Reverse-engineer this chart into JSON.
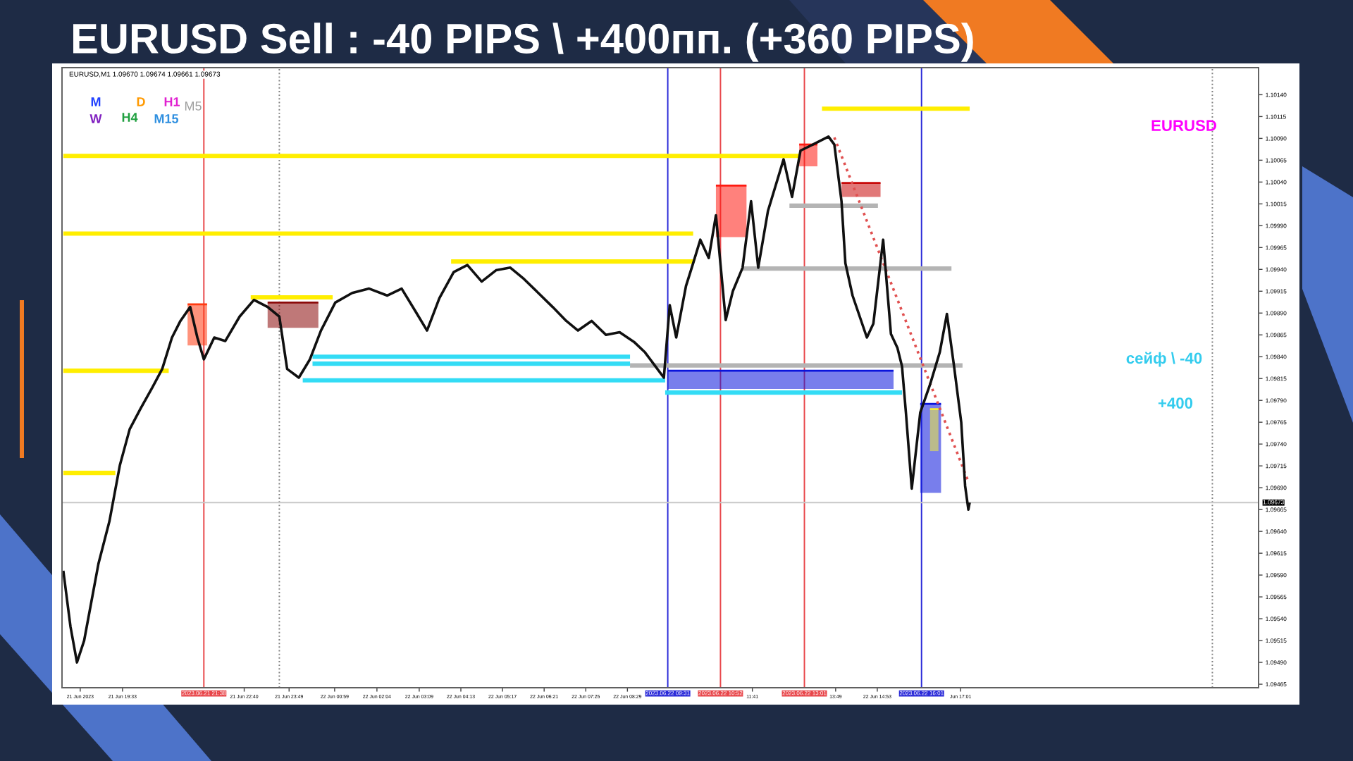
{
  "chart_data": {
    "type": "line",
    "title": "EURUSD Sell : -40 PIPS \\ +400пп. (+360 PIPS)",
    "annotations": [
      "EURUSD,M1 1.09670 1.09674 1.09661 1.09673",
      "M",
      "D",
      "H1",
      "M5",
      "W",
      "H4",
      "M15",
      "EURUSD",
      "сейф \\ -40",
      "+400"
    ],
    "xlim": [
      "2023-06-21T18:00",
      "2023-06-23T00:39"
    ],
    "xticks": [
      {
        "value": "2023-06-21T18:28",
        "label": "21 Jun 2023"
      },
      {
        "value": "2023-06-21T19:33",
        "label": "21 Jun 19:33"
      },
      {
        "value": "2023-06-21T22:40",
        "label": "21 Jun 22:40"
      },
      {
        "value": "2023-06-21T23:49",
        "label": "21 Jun 23:49"
      },
      {
        "value": "2023-06-22T00:59",
        "label": "22 Jun 00:59"
      },
      {
        "value": "2023-06-22T02:04",
        "label": "22 Jun 02:04"
      },
      {
        "value": "2023-06-22T03:09",
        "label": "22 Jun 03:09"
      },
      {
        "value": "2023-06-22T04:13",
        "label": "22 Jun 04:13"
      },
      {
        "value": "2023-06-22T05:17",
        "label": "22 Jun 05:17"
      },
      {
        "value": "2023-06-22T06:21",
        "label": "22 Jun 06:21"
      },
      {
        "value": "2023-06-22T07:25",
        "label": "22 Jun 07:25"
      },
      {
        "value": "2023-06-22T08:29",
        "label": "22 Jun 08:29"
      },
      {
        "value": "2023-06-22T11:41",
        "label": "11:41"
      },
      {
        "value": "2023-06-22T13:49",
        "label": "13:49"
      },
      {
        "value": "2023-06-22T14:53",
        "label": "22 Jun 14:53"
      },
      {
        "value": "2023-06-22T17:01",
        "label": "Jun 17:01"
      }
    ],
    "ylim": [
      1.09461,
      1.10171
    ],
    "yticks": [
      {
        "value": 1.09465,
        "label": "1.09465"
      },
      {
        "value": 1.0949,
        "label": "1.09490"
      },
      {
        "value": 1.09515,
        "label": "1.09515"
      },
      {
        "value": 1.0954,
        "label": "1.09540"
      },
      {
        "value": 1.09565,
        "label": "1.09565"
      },
      {
        "value": 1.0959,
        "label": "1.09590"
      },
      {
        "value": 1.09615,
        "label": "1.09615"
      },
      {
        "value": 1.0964,
        "label": "1.09640"
      },
      {
        "value": 1.09665,
        "label": "1.09665"
      },
      {
        "value": 1.0969,
        "label": "1.09690"
      },
      {
        "value": 1.09715,
        "label": "1.09715"
      },
      {
        "value": 1.0974,
        "label": "1.09740"
      },
      {
        "value": 1.09765,
        "label": "1.09765"
      },
      {
        "value": 1.0979,
        "label": "1.09790"
      },
      {
        "value": 1.09815,
        "label": "1.09815"
      },
      {
        "value": 1.0984,
        "label": "1.09840"
      },
      {
        "value": 1.09865,
        "label": "1.09865"
      },
      {
        "value": 1.0989,
        "label": "1.09890"
      },
      {
        "value": 1.09915,
        "label": "1.09915"
      },
      {
        "value": 1.0994,
        "label": "1.09940"
      },
      {
        "value": 1.09965,
        "label": "1.09965"
      },
      {
        "value": 1.0999,
        "label": "1.09990"
      },
      {
        "value": 1.10015,
        "label": "1.10015"
      },
      {
        "value": 1.1004,
        "label": "1.10040"
      },
      {
        "value": 1.10065,
        "label": "1.10065"
      },
      {
        "value": 1.1009,
        "label": "1.10090"
      },
      {
        "value": 1.10115,
        "label": "1.10115"
      },
      {
        "value": 1.1014,
        "label": "1.10140"
      }
    ],
    "ref_lines": [
      {
        "axis": "x",
        "value": "2023-06-21T21:38",
        "label": "2023.06.21 21:38",
        "color": "#e8464a"
      },
      {
        "axis": "x",
        "value": "2023-06-21T23:34",
        "color": "#808080",
        "line_style": "dotted"
      },
      {
        "axis": "x",
        "value": "2023-06-22T09:31",
        "label": "2023.06.22 09:31",
        "color": "#2a2ad8"
      },
      {
        "axis": "x",
        "value": "2023-06-22T10:52",
        "label": "2023.06.22 10:52",
        "color": "#e8464a"
      },
      {
        "axis": "x",
        "value": "2023-06-22T13:01",
        "label": "2023.06.22 13:01",
        "color": "#e8464a"
      },
      {
        "axis": "x",
        "value": "2023-06-22T16:01",
        "label": "2023.06.22 16:01",
        "color": "#2a2ad8"
      },
      {
        "axis": "x",
        "value": "2023-06-22T23:28",
        "color": "#808080",
        "line_style": "dotted"
      },
      {
        "axis": "y",
        "value": 1.09673,
        "label": "1.09673",
        "color": "#c8c8c8"
      }
    ],
    "series": [
      {
        "color": "#b4b4b4",
        "x": [
          "2023-06-22T12:38",
          "2023-06-22T14:54"
        ],
        "values": [
          1.10013,
          1.10013
        ]
      },
      {
        "color": "#b4b4b4",
        "x": [
          "2023-06-22T11:26",
          "2023-06-22T16:47"
        ],
        "values": [
          1.09941,
          1.09941
        ]
      },
      {
        "color": "#b4b4b4",
        "x": [
          "2023-06-22T08:33",
          "2023-06-22T17:04"
        ],
        "values": [
          1.0983,
          1.0983
        ]
      },
      {
        "color": "#33dcf5",
        "x": [
          "2023-06-22T00:25",
          "2023-06-22T08:33"
        ],
        "values": [
          1.0984,
          1.0984
        ]
      },
      {
        "color": "#33dcf5",
        "x": [
          "2023-06-22T00:25",
          "2023-06-22T08:33"
        ],
        "values": [
          1.09832,
          1.09832
        ]
      },
      {
        "color": "#33dcf5",
        "x": [
          "2023-06-22T00:10",
          "2023-06-22T09:27"
        ],
        "values": [
          1.09813,
          1.09813
        ]
      },
      {
        "color": "#0a14dc",
        "x": [
          "2023-06-22T09:31",
          "2023-06-22T15:18"
        ],
        "values": [
          1.09824,
          1.09824
        ],
        "lower": [
          1.09803,
          1.09803
        ],
        "upper": [
          1.09824,
          1.09824
        ]
      },
      {
        "color": "#33dcf5",
        "x": [
          "2023-06-22T09:27",
          "2023-06-22T15:31"
        ],
        "values": [
          1.09799,
          1.09799
        ]
      },
      {
        "color": "#0a14dc",
        "x": [
          "2023-06-22T15:59",
          "2023-06-22T16:31"
        ],
        "values": [
          1.09786,
          1.09786
        ],
        "lower": [
          1.09684,
          1.09684
        ],
        "upper": [
          1.09786,
          1.09786
        ]
      },
      {
        "color": "#f2ec3c",
        "x": [
          "2023-06-22T16:14",
          "2023-06-22T16:27"
        ],
        "values": [
          1.0978,
          1.0978
        ],
        "lower": [
          1.09732,
          1.09732
        ],
        "upper": [
          1.0978,
          1.0978
        ]
      },
      {
        "color": "#ffee00",
        "x": [
          "2023-06-22T13:28",
          "2023-06-22T17:15"
        ],
        "values": [
          1.10124,
          1.10124
        ]
      },
      {
        "color": "#ffee00",
        "x": [
          "2023-06-21T18:02",
          "2023-06-22T12:53"
        ],
        "values": [
          1.1007,
          1.1007
        ]
      },
      {
        "color": "#ffee00",
        "x": [
          "2023-06-21T18:02",
          "2023-06-22T10:10"
        ],
        "values": [
          1.09981,
          1.09981
        ]
      },
      {
        "color": "#ffee00",
        "x": [
          "2023-06-22T03:58",
          "2023-06-22T10:10"
        ],
        "values": [
          1.09949,
          1.09949
        ]
      },
      {
        "color": "#ffee00",
        "x": [
          "2023-06-21T22:50",
          "2023-06-22T00:56"
        ],
        "values": [
          1.09908,
          1.09908
        ]
      },
      {
        "color": "#ffee00",
        "x": [
          "2023-06-21T18:02",
          "2023-06-21T20:44"
        ],
        "values": [
          1.09824,
          1.09824
        ]
      },
      {
        "color": "#ffee00",
        "x": [
          "2023-06-21T18:02",
          "2023-06-21T19:22"
        ],
        "values": [
          1.09707,
          1.09707
        ]
      },
      {
        "color": "#ff1a10",
        "x": [
          "2023-06-22T10:45",
          "2023-06-22T11:32"
        ],
        "values": [
          1.10036,
          1.10036
        ],
        "lower": [
          1.09977,
          1.09977
        ],
        "upper": [
          1.10036,
          1.10036
        ]
      },
      {
        "color": "#c80a0a",
        "x": [
          "2023-06-22T13:58",
          "2023-06-22T14:58"
        ],
        "values": [
          1.10039,
          1.10039
        ],
        "lower": [
          1.10023,
          1.10023
        ],
        "upper": [
          1.10039,
          1.10039
        ]
      },
      {
        "color": "#ff1a10",
        "x": [
          "2023-06-22T12:53",
          "2023-06-22T13:21"
        ],
        "values": [
          1.10083,
          1.10083
        ],
        "lower": [
          1.10058,
          1.10058
        ],
        "upper": [
          1.10083,
          1.10083
        ]
      },
      {
        "color": "#8b0a0a",
        "x": [
          "2023-06-21T23:16",
          "2023-06-22T00:34"
        ],
        "values": [
          1.09902,
          1.09902
        ],
        "lower": [
          1.09873,
          1.09873
        ],
        "upper": [
          1.09902,
          1.09902
        ]
      },
      {
        "color": "#ff3a10",
        "x": [
          "2023-06-21T21:13",
          "2023-06-21T21:43"
        ],
        "values": [
          1.099,
          1.099
        ],
        "lower": [
          1.09853,
          1.09853
        ],
        "upper": [
          1.099,
          1.099
        ]
      },
      {
        "color": "#e05050",
        "line_style": "dotted",
        "x": [
          "2023-06-22T13:47",
          "2023-06-22T17:13"
        ],
        "values": [
          1.10091,
          1.09697
        ]
      },
      {
        "color": "#101010",
        "x": [
          "2023-06-21T18:02",
          "2023-06-21T18:13",
          "2023-06-21T18:23",
          "2023-06-21T18:34",
          "2023-06-21T18:46",
          "2023-06-21T18:56",
          "2023-06-21T19:13",
          "2023-06-21T19:29",
          "2023-06-21T19:44",
          "2023-06-21T20:01",
          "2023-06-21T20:19",
          "2023-06-21T20:34",
          "2023-06-21T20:49",
          "2023-06-21T21:02",
          "2023-06-21T21:17",
          "2023-06-21T21:28",
          "2023-06-21T21:38",
          "2023-06-21T21:54",
          "2023-06-21T22:11",
          "2023-06-21T22:33",
          "2023-06-21T22:55",
          "2023-06-21T23:16",
          "2023-06-21T23:34",
          "2023-06-21T23:46",
          "2023-06-22T00:04",
          "2023-06-22T00:21",
          "2023-06-22T00:38",
          "2023-06-22T01:00",
          "2023-06-22T01:26",
          "2023-06-22T01:52",
          "2023-06-22T02:20",
          "2023-06-22T02:42",
          "2023-06-22T03:04",
          "2023-06-22T03:21",
          "2023-06-22T03:40",
          "2023-06-22T04:02",
          "2023-06-22T04:23",
          "2023-06-22T04:45",
          "2023-06-22T05:07",
          "2023-06-22T05:29",
          "2023-06-22T05:50",
          "2023-06-22T06:12",
          "2023-06-22T06:34",
          "2023-06-22T06:55",
          "2023-06-22T07:13",
          "2023-06-22T07:34",
          "2023-06-22T07:56",
          "2023-06-22T08:17",
          "2023-06-22T08:39",
          "2023-06-22T08:56",
          "2023-06-22T09:12",
          "2023-06-22T09:25",
          "2023-06-22T09:34",
          "2023-06-22T09:44",
          "2023-06-22T09:59",
          "2023-06-22T10:10",
          "2023-06-22T10:21",
          "2023-06-22T10:34",
          "2023-06-22T10:45",
          "2023-06-22T11:00",
          "2023-06-22T11:11",
          "2023-06-22T11:26",
          "2023-06-22T11:39",
          "2023-06-22T11:50",
          "2023-06-22T12:05",
          "2023-06-22T12:16",
          "2023-06-22T12:29",
          "2023-06-22T12:42",
          "2023-06-22T12:55",
          "2023-06-22T13:14",
          "2023-06-22T13:38",
          "2023-06-22T13:47",
          "2023-06-22T13:58",
          "2023-06-22T14:04",
          "2023-06-22T14:15",
          "2023-06-22T14:26",
          "2023-06-22T14:37",
          "2023-06-22T14:47",
          "2023-06-22T15:02",
          "2023-06-22T15:14",
          "2023-06-22T15:24",
          "2023-06-22T15:31",
          "2023-06-22T15:37",
          "2023-06-22T15:46",
          "2023-06-22T15:59",
          "2023-06-22T16:14",
          "2023-06-22T16:29",
          "2023-06-22T16:40",
          "2023-06-22T16:51",
          "2023-06-22T17:02",
          "2023-06-22T17:08",
          "2023-06-22T17:13",
          "2023-06-22T17:15"
        ],
        "values": [
          1.09595,
          1.09531,
          1.0949,
          1.09515,
          1.09563,
          1.09603,
          1.09652,
          1.09716,
          1.09757,
          1.09781,
          1.09805,
          1.09826,
          1.09862,
          1.09881,
          1.09897,
          1.09862,
          1.09837,
          1.09862,
          1.09858,
          1.09886,
          1.09905,
          1.09897,
          1.09886,
          1.09826,
          1.09816,
          1.09837,
          1.0987,
          1.09902,
          1.09913,
          1.09918,
          1.0991,
          1.09918,
          1.09891,
          1.0987,
          1.09907,
          1.09937,
          1.09945,
          1.09926,
          1.09939,
          1.09942,
          1.09929,
          1.09913,
          1.09897,
          1.09881,
          1.0987,
          1.09881,
          1.09865,
          1.09868,
          1.09857,
          1.09845,
          1.09829,
          1.09816,
          1.09899,
          1.09862,
          1.09921,
          1.09947,
          1.09974,
          1.09953,
          1.10002,
          1.09882,
          1.09915,
          1.09942,
          1.10018,
          1.09942,
          1.10007,
          1.10034,
          1.10066,
          1.10023,
          1.10076,
          1.10083,
          1.10092,
          1.10083,
          1.10018,
          1.09947,
          1.0991,
          1.09886,
          1.09862,
          1.09878,
          1.09974,
          1.09866,
          1.0985,
          1.09829,
          1.09776,
          1.09689,
          1.09776,
          1.09808,
          1.09845,
          1.09889,
          1.09829,
          1.09765,
          1.09692,
          1.09665,
          1.09673
        ]
      }
    ]
  }
}
